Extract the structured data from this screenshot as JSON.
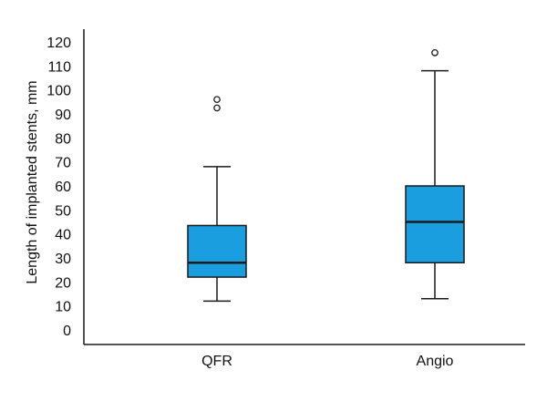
{
  "chart_data": {
    "type": "box",
    "ylabel": "Length of implanted stents, mm",
    "xlabel": "",
    "ylim": [
      0,
      120
    ],
    "yticks": [
      0,
      10,
      20,
      30,
      40,
      50,
      60,
      70,
      80,
      90,
      100,
      110,
      120
    ],
    "categories": [
      "QFR",
      "Angio"
    ],
    "series": [
      {
        "category": "QFR",
        "min": 12,
        "q1": 22,
        "median": 28,
        "q3": 43.5,
        "max": 68,
        "outliers": [
          92.5,
          96
        ]
      },
      {
        "category": "Angio",
        "min": 13,
        "q1": 28,
        "median": 45,
        "q3": 60,
        "max": 108,
        "outliers": [
          115.5
        ]
      }
    ],
    "colors": {
      "box_fill": "#1a9ee0",
      "box_stroke": "#1a1a1a",
      "axis": "#1a1a1a"
    },
    "grid": false,
    "legend": "none"
  }
}
